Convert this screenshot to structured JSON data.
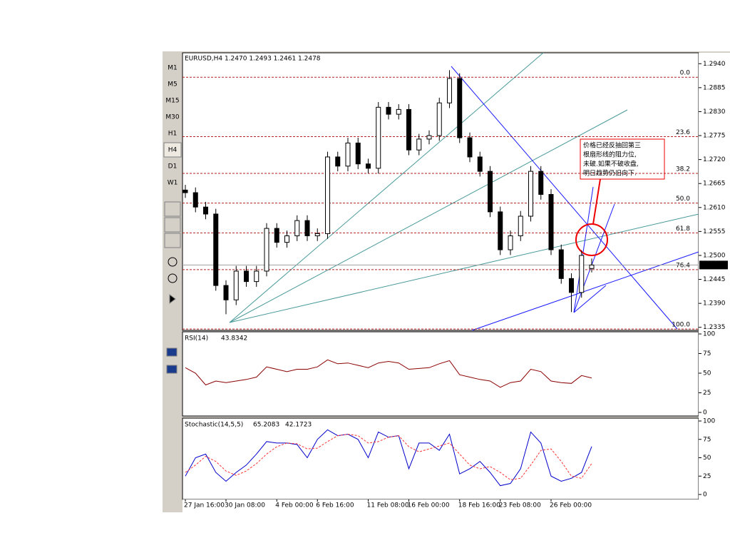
{
  "chart_data": {
    "type": "candlestick",
    "header": "EURUSD,H4  1.2470 1.2493 1.2461 1.2478",
    "toolbar": {
      "timeframes": [
        "M1",
        "M5",
        "M15",
        "M30",
        "H1",
        "H4",
        "D1",
        "W1"
      ],
      "active": 5
    },
    "x": [
      "27 Jan 16:00",
      null,
      null,
      null,
      "30 Jan 08:00",
      null,
      null,
      null,
      null,
      "4 Feb 00:00",
      null,
      null,
      null,
      "6 Feb 16:00",
      null,
      null,
      null,
      null,
      "11 Feb 08:00",
      null,
      null,
      null,
      "16 Feb 00:00",
      null,
      null,
      null,
      null,
      "18 Feb 16:00",
      null,
      null,
      null,
      "23 Feb 08:00",
      null,
      null,
      null,
      null,
      "26 Feb 00:00",
      null,
      null,
      null,
      null
    ],
    "candles": {
      "open": [
        1.265,
        1.2644,
        1.2611,
        1.2595,
        1.2431,
        1.2398,
        1.2464,
        1.244,
        1.2464,
        1.2562,
        1.253,
        1.2545,
        1.258,
        1.2545,
        1.255,
        1.2726,
        1.2705,
        1.2758,
        1.271,
        1.27,
        1.284,
        1.2824,
        1.2835,
        1.2742,
        1.2767,
        1.2775,
        1.285,
        1.2906,
        1.277,
        1.2726,
        1.2693,
        1.26,
        1.2513,
        1.2545,
        1.259,
        1.2693,
        1.264,
        1.2513,
        1.2447,
        1.2415,
        1.247
      ],
      "high": [
        1.2662,
        1.2656,
        1.2623,
        1.2607,
        1.2443,
        1.2476,
        1.2476,
        1.2476,
        1.2574,
        1.2574,
        1.2557,
        1.2592,
        1.2592,
        1.2562,
        1.2738,
        1.2738,
        1.277,
        1.277,
        1.2722,
        1.2852,
        1.2852,
        1.2847,
        1.2847,
        1.2779,
        1.2787,
        1.2862,
        1.2925,
        1.2918,
        1.2782,
        1.2738,
        1.2705,
        1.2612,
        1.2557,
        1.2602,
        1.2705,
        1.2705,
        1.2652,
        1.2525,
        1.2459,
        1.2512,
        1.2493
      ],
      "low": [
        1.2632,
        1.2599,
        1.2583,
        1.2419,
        1.2365,
        1.2386,
        1.2428,
        1.2428,
        1.2452,
        1.2518,
        1.2518,
        1.2533,
        1.2533,
        1.2533,
        1.2538,
        1.2693,
        1.2693,
        1.2698,
        1.2688,
        1.2688,
        1.2812,
        1.2812,
        1.273,
        1.273,
        1.2755,
        1.2763,
        1.2838,
        1.2758,
        1.2714,
        1.2681,
        1.2588,
        1.2501,
        1.2501,
        1.2533,
        1.2578,
        1.2628,
        1.2501,
        1.2435,
        1.237,
        1.2403,
        1.2461
      ],
      "close": [
        1.2644,
        1.2611,
        1.2595,
        1.2431,
        1.2398,
        1.2464,
        1.244,
        1.2464,
        1.2562,
        1.253,
        1.2545,
        1.258,
        1.2545,
        1.255,
        1.2726,
        1.2705,
        1.2758,
        1.271,
        1.27,
        1.284,
        1.2824,
        1.2835,
        1.2742,
        1.2767,
        1.2775,
        1.285,
        1.2906,
        1.277,
        1.2726,
        1.2693,
        1.26,
        1.2513,
        1.2545,
        1.259,
        1.2693,
        1.264,
        1.2513,
        1.2447,
        1.2415,
        1.25,
        1.2478
      ]
    },
    "ylim": [
      1.2328,
      1.2965
    ],
    "yticks": [
      {
        "value": 1.294,
        "label": "1.2940"
      },
      {
        "value": 1.2885,
        "label": "1.2885"
      },
      {
        "value": 1.283,
        "label": "1.2830"
      },
      {
        "value": 1.2775,
        "label": "1.2775"
      },
      {
        "value": 1.272,
        "label": "1.2720"
      },
      {
        "value": 1.2665,
        "label": "1.2665"
      },
      {
        "value": 1.261,
        "label": "1.2610"
      },
      {
        "value": 1.2555,
        "label": "1.2555"
      },
      {
        "value": 1.25,
        "label": "1.2500"
      },
      {
        "value": 1.2445,
        "label": "1.2445"
      },
      {
        "value": 1.239,
        "label": "1.2390"
      },
      {
        "value": 1.2335,
        "label": "1.2335"
      }
    ],
    "current_price": {
      "value": 1.2478,
      "label": "1.2478"
    },
    "fibo": {
      "high": 1.2909,
      "low": 1.2331,
      "color": "#b22222",
      "levels": [
        {
          "value": 0,
          "label": "0.0"
        },
        {
          "value": 23.6,
          "label": "23.6"
        },
        {
          "value": 38.2,
          "label": "38.2"
        },
        {
          "value": 50,
          "label": "50.0"
        },
        {
          "value": 61.8,
          "label": "61.8"
        },
        {
          "value": 76.4,
          "label": "76.4"
        },
        {
          "value": 100,
          "label": "100.0"
        }
      ]
    },
    "annotation": [
      "价格已经反抽回第三",
      "根扇形线的阻力位,",
      "未破.如果不破收盘,",
      "明日趋势仍旧向下."
    ],
    "rsi": {
      "title": "RSI(14)",
      "color": "#8b0000",
      "ylim": [
        0,
        100
      ],
      "yticks": [
        100,
        75,
        50,
        25,
        0
      ],
      "values": [
        57,
        50,
        35,
        40,
        38,
        40,
        42,
        45,
        58,
        55,
        52,
        55,
        55,
        58,
        67,
        62,
        63,
        60,
        57,
        63,
        65,
        63,
        55,
        56,
        57,
        62,
        66,
        48,
        45,
        42,
        40,
        32,
        38,
        40,
        55,
        52,
        40,
        38,
        37,
        47,
        43.8342
      ]
    },
    "stochastic": {
      "title": "Stochastic(14,5,5)",
      "ylim": [
        0,
        100
      ],
      "yticks": [
        100,
        75,
        50,
        25,
        0
      ],
      "series": [
        {
          "color": "#0000cc",
          "values": [
            25,
            50,
            55,
            30,
            18,
            30,
            40,
            55,
            72,
            70,
            70,
            68,
            50,
            75,
            88,
            80,
            82,
            75,
            50,
            85,
            78,
            80,
            35,
            70,
            70,
            60,
            82,
            28,
            35,
            45,
            30,
            12,
            15,
            35,
            85,
            70,
            25,
            18,
            22,
            30,
            65.2083
          ]
        },
        {
          "color": "#ff3333",
          "values": [
            30,
            40,
            52,
            45,
            32,
            26,
            32,
            42,
            55,
            65,
            70,
            69,
            62,
            63,
            72,
            80,
            82,
            80,
            70,
            72,
            78,
            80,
            65,
            58,
            62,
            66,
            70,
            55,
            40,
            35,
            38,
            30,
            20,
            22,
            40,
            60,
            62,
            45,
            25,
            22,
            42.1723
          ]
        }
      ]
    }
  }
}
